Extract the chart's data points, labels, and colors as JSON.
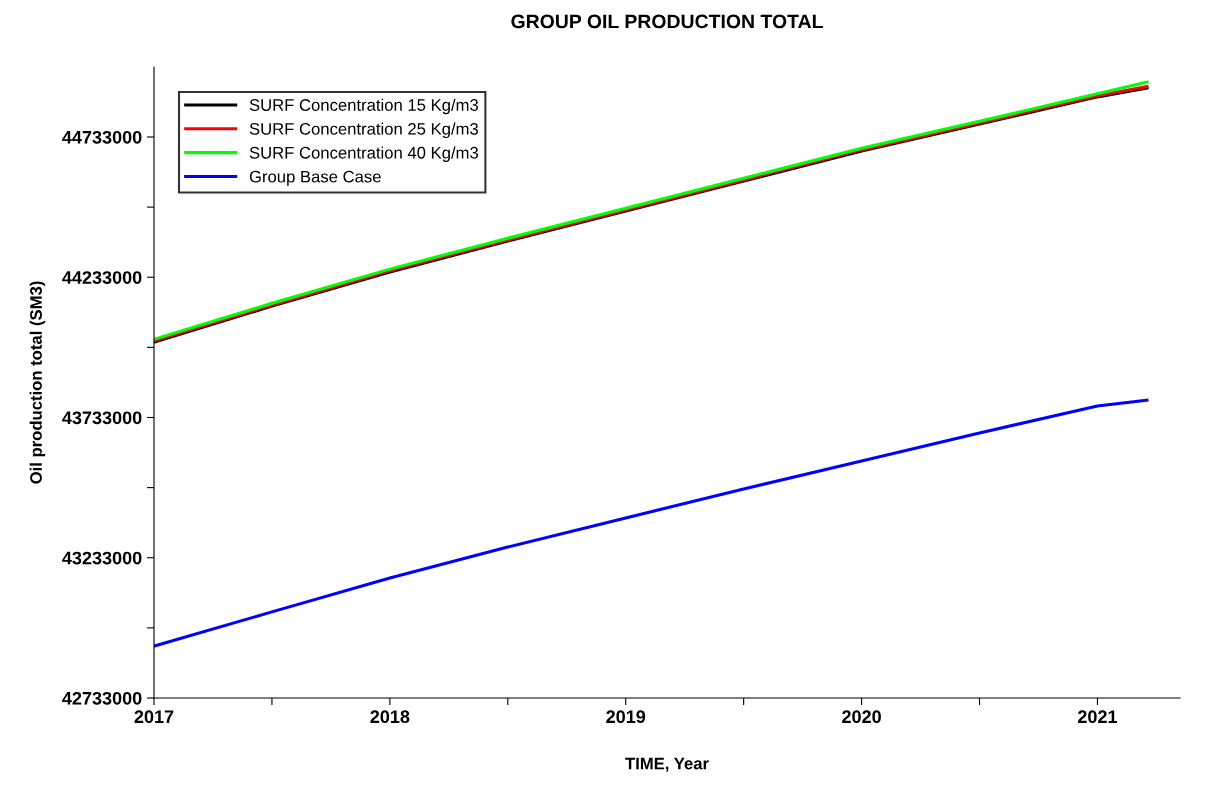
{
  "chart_data": {
    "type": "line",
    "title": "GROUP OIL PRODUCTION TOTAL",
    "xlabel": "TIME, Year",
    "ylabel": "Oil production total (SM3)",
    "x": [
      2017,
      2017.5,
      2018,
      2018.5,
      2019,
      2019.5,
      2020,
      2020.5,
      2021,
      2021.21
    ],
    "series": [
      {
        "name": "SURF Concentration 15 Kg/m3",
        "color": "#000000",
        "values": [
          44002000,
          44130000,
          44252000,
          44362000,
          44469000,
          44576000,
          44683000,
          44779000,
          44876000,
          44908000
        ]
      },
      {
        "name": "SURF Concentration 25 Kg/m3",
        "color": "#ff0000",
        "values": [
          44006000,
          44134000,
          44256000,
          44366000,
          44473000,
          44580000,
          44687000,
          44783000,
          44880000,
          44913000
        ]
      },
      {
        "name": "SURF Concentration 40 Kg/m3",
        "color": "#00ff00",
        "values": [
          44012000,
          44140000,
          44262000,
          44372000,
          44479000,
          44586000,
          44693000,
          44789000,
          44887000,
          44929000
        ]
      },
      {
        "name": "Group Base Case",
        "color": "#0000ff",
        "values": [
          42918000,
          43040000,
          43161000,
          43271000,
          43375000,
          43478000,
          43578000,
          43678000,
          43774000,
          43795000
        ]
      }
    ],
    "xlim": [
      2017,
      2021.35
    ],
    "xticks": [
      2017,
      {
        "value": 2017.5,
        "label": null
      },
      2018,
      {
        "value": 2018.5,
        "label": null
      },
      2019,
      {
        "value": 2019.5,
        "label": null
      },
      2020,
      {
        "value": 2020.5,
        "label": null
      },
      2021
    ],
    "ylim": [
      42733000,
      44982500
    ],
    "yticks": [
      42733000,
      {
        "value": 42983000,
        "label": null
      },
      43233000,
      {
        "value": 43483000,
        "label": null
      },
      43733000,
      {
        "value": 43983000,
        "label": null
      },
      44233000,
      {
        "value": 44483000,
        "label": null
      },
      44733000
    ],
    "grid": false,
    "legend": "top left",
    "line_style": "solid",
    "marker": "none"
  }
}
